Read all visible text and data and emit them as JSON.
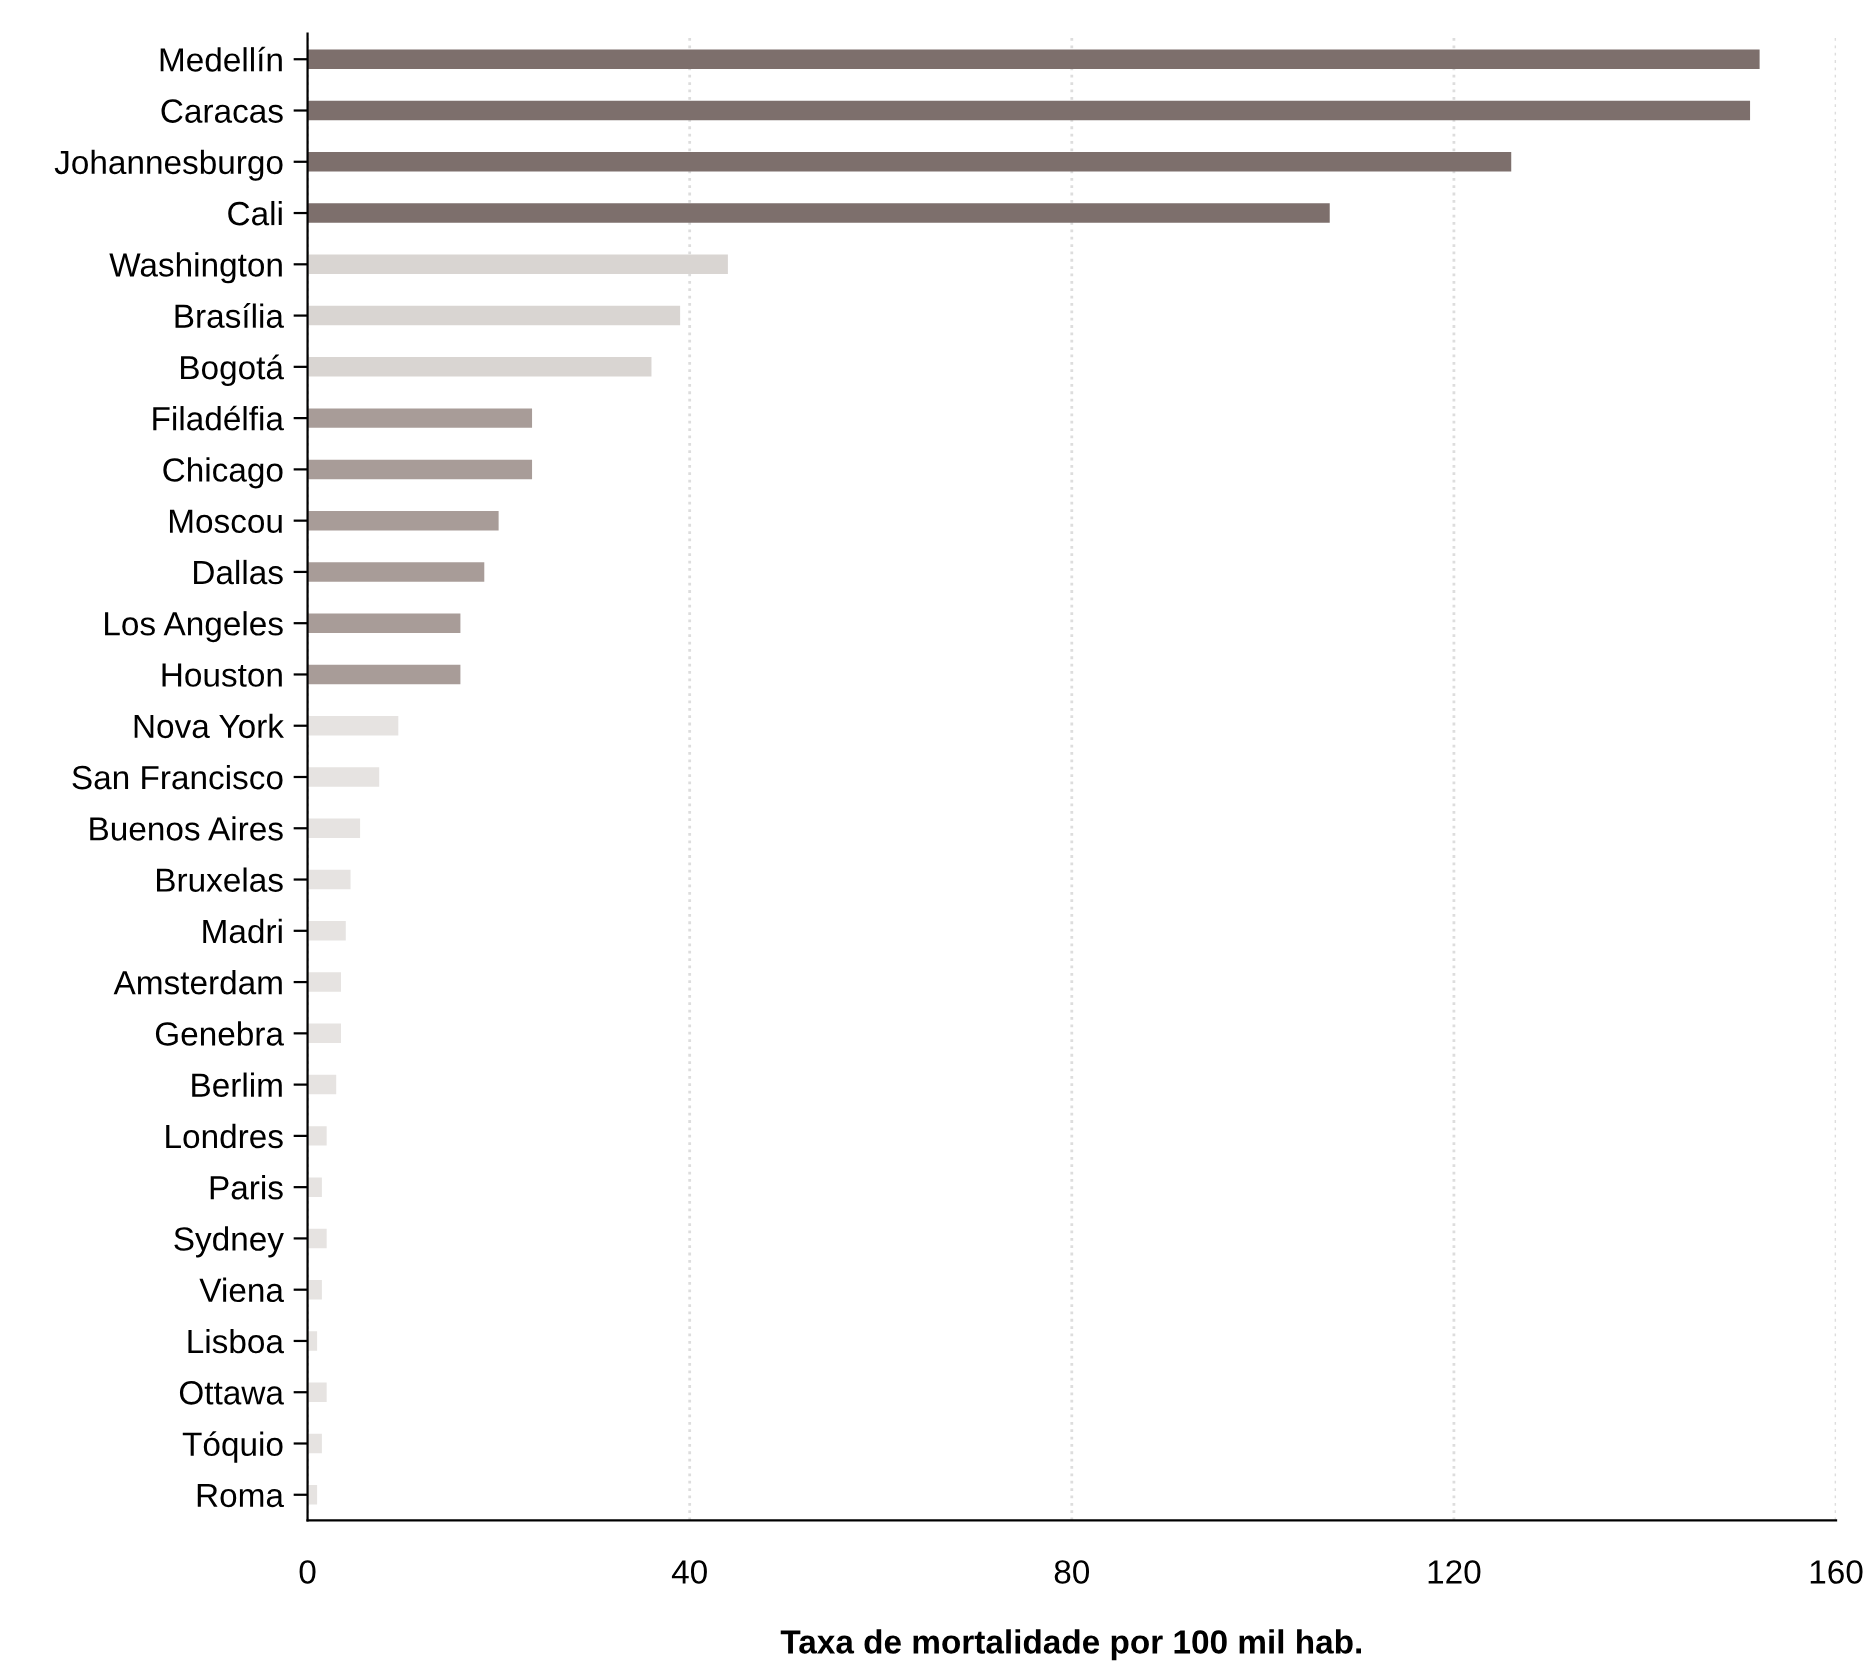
{
  "chart_data": {
    "type": "bar",
    "orientation": "horizontal",
    "xlabel": "Taxa de mortalidade por 100 mil hab.",
    "categories": [
      "Medellín",
      "Caracas",
      "Johannesburgo",
      "Cali",
      "Washington",
      "Brasília",
      "Bogotá",
      "Filadélfia",
      "Chicago",
      "Moscou",
      "Dallas",
      "Los Angeles",
      "Houston",
      "Nova York",
      "San Francisco",
      "Buenos Aires",
      "Bruxelas",
      "Madri",
      "Amsterdam",
      "Genebra",
      "Berlim",
      "Londres",
      "Paris",
      "Sydney",
      "Viena",
      "Lisboa",
      "Ottawa",
      "Tóquio",
      "Roma"
    ],
    "values": [
      152,
      151,
      126,
      107,
      44,
      39,
      36,
      23.5,
      23.5,
      20,
      18.5,
      16,
      16,
      9.5,
      7.5,
      5.5,
      4.5,
      4,
      3.5,
      3.5,
      3,
      2,
      1.5,
      2,
      1.5,
      1,
      2,
      1.5,
      1
    ],
    "colors": [
      "#7d6f6c",
      "#7d6f6c",
      "#7d6f6c",
      "#7d6f6c",
      "#d9d5d2",
      "#d9d5d2",
      "#d9d5d2",
      "#a89c98",
      "#a89c98",
      "#a89c98",
      "#a89c98",
      "#a89c98",
      "#a89c98",
      "#e6e3e1",
      "#e6e3e1",
      "#e6e3e1",
      "#e6e3e1",
      "#e6e3e1",
      "#e6e3e1",
      "#e6e3e1",
      "#e6e3e1",
      "#e6e3e1",
      "#e6e3e1",
      "#e6e3e1",
      "#e6e3e1",
      "#e6e3e1",
      "#e6e3e1",
      "#e6e3e1",
      "#e6e3e1"
    ],
    "xlim": [
      0,
      160
    ],
    "xticks": [
      0,
      40,
      80,
      120,
      160
    ],
    "grid": "x"
  }
}
